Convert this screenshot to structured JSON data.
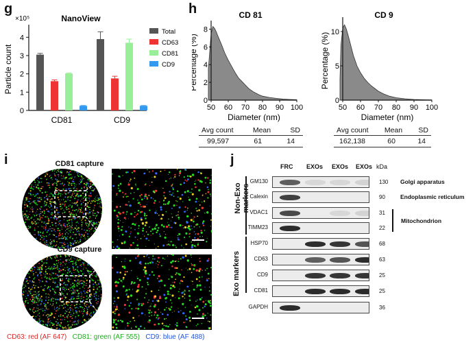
{
  "panel_g": {
    "letter": "g",
    "chart_data": {
      "type": "bar",
      "title": "NanoView",
      "ylabel": "Particle count",
      "y_exponent": "×10⁵",
      "ylim": [
        0,
        4.5
      ],
      "yticks": [
        "0",
        "1",
        "2",
        "3",
        "4"
      ],
      "categories": [
        "CD81",
        "CD9"
      ],
      "series": [
        {
          "name": "Total",
          "color": "#555555",
          "values": [
            3.05,
            3.9
          ],
          "errors": [
            0.07,
            0.4
          ]
        },
        {
          "name": "CD63",
          "color": "#ee3333",
          "values": [
            1.6,
            1.75
          ],
          "errors": [
            0.07,
            0.12
          ]
        },
        {
          "name": "CD81",
          "color": "#99ee99",
          "values": [
            2.02,
            3.7
          ],
          "errors": [
            0.03,
            0.2
          ]
        },
        {
          "name": "CD9",
          "color": "#3399ee",
          "values": [
            0.25,
            0.25
          ],
          "errors": [
            0.02,
            0.02
          ]
        }
      ],
      "legend_position": "top-right"
    }
  },
  "panel_h": {
    "letter": "h",
    "charts": [
      {
        "chart_data": {
          "type": "area",
          "title": "CD 81",
          "xlabel": "Diameter (nm)",
          "ylabel": "Percentage (%)",
          "xlim": [
            50,
            100
          ],
          "ylim": [
            0,
            8.5
          ],
          "xticks": [
            "50",
            "60",
            "70",
            "80",
            "90",
            "100"
          ],
          "yticks": [
            "0",
            "2",
            "4",
            "6",
            "8"
          ],
          "x": [
            48,
            50,
            51,
            52,
            53,
            54,
            56,
            58,
            60,
            62,
            64,
            66,
            68,
            70,
            72,
            75,
            78,
            80,
            84,
            88,
            92,
            96,
            100
          ],
          "y": [
            3.5,
            7.5,
            8.3,
            8.1,
            7.7,
            7.2,
            6.3,
            5.3,
            4.5,
            3.8,
            3.1,
            2.5,
            2.1,
            1.7,
            1.3,
            0.9,
            0.6,
            0.45,
            0.3,
            0.2,
            0.12,
            0.08,
            0.05
          ]
        },
        "table": {
          "headers": [
            "Avg count",
            "Mean",
            "SD"
          ],
          "values": [
            "99,597",
            "61",
            "14"
          ]
        }
      },
      {
        "chart_data": {
          "type": "area",
          "title": "CD 9",
          "xlabel": "Diameter (nm)",
          "ylabel": "Percentage (%)",
          "xlim": [
            50,
            100
          ],
          "ylim": [
            0,
            11.5
          ],
          "xticks": [
            "50",
            "60",
            "70",
            "80",
            "90",
            "100"
          ],
          "yticks": [
            "0",
            "5",
            "10"
          ],
          "x": [
            48,
            49,
            50,
            51,
            52,
            53,
            54,
            56,
            58,
            60,
            62,
            64,
            66,
            68,
            70,
            73,
            76,
            80,
            85,
            90,
            95,
            100
          ],
          "y": [
            3,
            8,
            10.5,
            11,
            10.4,
            9.5,
            8.5,
            6.5,
            5,
            4,
            3.2,
            2.6,
            2.1,
            1.7,
            1.3,
            0.9,
            0.6,
            0.35,
            0.2,
            0.1,
            0.06,
            0.04
          ]
        },
        "table": {
          "headers": [
            "Avg count",
            "Mean",
            "SD"
          ],
          "values": [
            "162,138",
            "60",
            "14"
          ]
        }
      }
    ]
  },
  "panel_i": {
    "letter": "i",
    "captures": [
      {
        "title": "CD81 capture"
      },
      {
        "title": "CD9 capture"
      }
    ],
    "legend": [
      {
        "text": "CD63: red (AF 647)",
        "color": "#dd2222"
      },
      {
        "text": "CD81: green (AF 555)",
        "color": "#22aa22"
      },
      {
        "text": "CD9: blue (AF 488)",
        "color": "#2255dd"
      }
    ]
  },
  "panel_j": {
    "letter": "j",
    "columns": [
      "FRC",
      "EXOs",
      "EXOs",
      "EXOs"
    ],
    "kda_header": "kDa",
    "group_labels": {
      "non_exo": "Non-Exo\nmarkers",
      "exo": "Exo markers"
    },
    "rows": [
      {
        "marker": "GM130",
        "kda": "130",
        "bands": [
          0.7,
          0.1,
          0.1,
          0.12
        ],
        "organelle": "Golgi apparatus"
      },
      {
        "marker": "Calexin",
        "kda": "90",
        "bands": [
          0.85,
          0,
          0,
          0
        ],
        "organelle": "Endoplasmic reticulum"
      },
      {
        "marker": "VDAC1",
        "kda": "31",
        "bands": [
          0.8,
          0,
          0.1,
          0.12
        ],
        "organelle": ""
      },
      {
        "marker": "TIMM23",
        "kda": "22",
        "bands": [
          0.95,
          0,
          0,
          0
        ],
        "organelle": ""
      },
      {
        "marker": "HSP70",
        "kda": "68",
        "bands": [
          0,
          0.95,
          0.9,
          0.75
        ],
        "organelle": ""
      },
      {
        "marker": "CD63",
        "kda": "63",
        "bands": [
          0,
          0.7,
          0.75,
          0.95
        ],
        "organelle": ""
      },
      {
        "marker": "CD9",
        "kda": "25",
        "bands": [
          0,
          0.9,
          0.9,
          0.9
        ],
        "organelle": ""
      },
      {
        "marker": "CD81",
        "kda": "25",
        "bands": [
          0,
          0.95,
          0.95,
          0.95
        ],
        "organelle": ""
      },
      {
        "marker": "GAPDH",
        "kda": "36",
        "bands": [
          0.95,
          0,
          0,
          0
        ],
        "organelle": ""
      }
    ],
    "mitochondrion_label": "Mitochondrion"
  }
}
